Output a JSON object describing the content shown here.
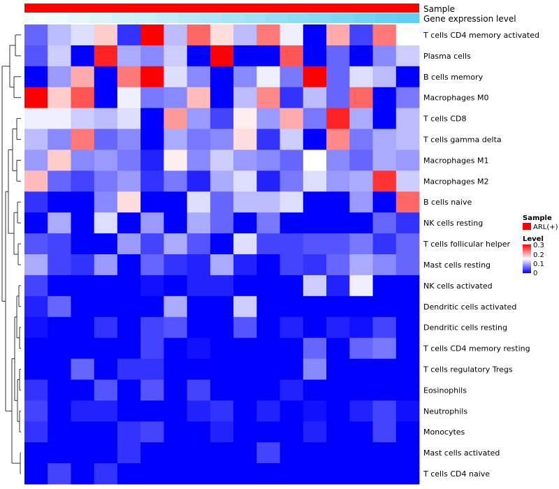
{
  "chart_data": {
    "type": "heatmap",
    "title": "",
    "annotations": {
      "sample_label": "Sample",
      "expression_label": "Gene expression level"
    },
    "legend": {
      "sample_title": "Sample",
      "sample_group": "ARL(+)",
      "sample_color": "#ff0000",
      "level_title": "Level",
      "level_ticks": [
        "0.3",
        "0.2",
        "0.1",
        "0"
      ],
      "range": [
        0,
        0.3
      ]
    },
    "colors": {
      "low": "#0000ff",
      "mid": "#ffffff",
      "high": "#ff0000"
    },
    "gene_expression_bar": [
      0.05,
      0.1,
      0.15,
      0.2,
      0.25,
      0.3,
      0.35,
      0.4,
      0.45,
      0.5,
      0.55,
      0.6,
      0.65,
      0.7,
      0.75,
      0.8,
      0.85,
      0.9
    ],
    "rows": [
      "T cells CD4 memory activated",
      "Plasma cells",
      "B cells memory",
      "Macrophages M0",
      "T cells CD8",
      "T cells gamma delta",
      "Macrophages M1",
      "Macrophages M2",
      "B cells naive",
      "NK cells resting",
      "T cells follicular helper",
      "Mast cells resting",
      "NK cells activated",
      "Dendritic cells activated",
      "Dendritic cells resting",
      "T cells CD4 memory resting",
      "T cells regulatory  Tregs",
      "Eosinophils",
      "Neutrophils",
      "Monocytes",
      "Mast cells activated",
      "T cells CD4 naive"
    ],
    "values": [
      [
        0.06,
        0.11,
        0.13,
        0.18,
        0.03,
        0.3,
        0.11,
        0.24,
        0.17,
        0.11,
        0.23,
        0.14,
        0.0,
        0.2,
        0.04,
        0.23,
        0.15
      ],
      [
        0.05,
        0.12,
        0.0,
        0.28,
        0.1,
        0.08,
        0.12,
        0.0,
        0.3,
        0.0,
        0.0,
        0.25,
        0.0,
        0.06,
        0.0,
        0.08,
        0.12
      ],
      [
        0.0,
        0.09,
        0.2,
        0.0,
        0.23,
        0.3,
        0.13,
        0.08,
        0.0,
        0.08,
        0.14,
        0.07,
        0.3,
        0.06,
        0.13,
        0.11,
        0.0
      ],
      [
        0.3,
        0.18,
        0.25,
        0.0,
        0.14,
        0.07,
        0.08,
        0.19,
        0.0,
        0.11,
        0.22,
        0.03,
        0.11,
        0.06,
        0.24,
        0.0,
        0.07
      ],
      [
        0.14,
        0.14,
        0.12,
        0.11,
        0.13,
        0.0,
        0.21,
        0.09,
        0.04,
        0.16,
        0.09,
        0.2,
        0.07,
        0.28,
        0.1,
        0.0,
        0.11
      ],
      [
        0.11,
        0.08,
        0.23,
        0.06,
        0.08,
        0.0,
        0.1,
        0.07,
        0.08,
        0.17,
        0.03,
        0.12,
        0.0,
        0.22,
        0.07,
        0.1,
        0.11
      ],
      [
        0.09,
        0.18,
        0.08,
        0.09,
        0.07,
        0.02,
        0.16,
        0.08,
        0.12,
        0.09,
        0.08,
        0.06,
        0.15,
        0.08,
        0.06,
        0.1,
        0.09
      ],
      [
        0.19,
        0.06,
        0.04,
        0.07,
        0.09,
        0.03,
        0.07,
        0.02,
        0.1,
        0.13,
        0.02,
        0.07,
        0.13,
        0.09,
        0.1,
        0.27,
        0.12
      ],
      [
        0.03,
        0.0,
        0.0,
        0.08,
        0.17,
        0.0,
        0.0,
        0.13,
        0.06,
        0.11,
        0.11,
        0.13,
        0.0,
        0.0,
        0.09,
        0.0,
        0.24
      ],
      [
        0.0,
        0.1,
        0.0,
        0.13,
        0.0,
        0.09,
        0.0,
        0.1,
        0.06,
        0.0,
        0.07,
        0.0,
        0.0,
        0.0,
        0.0,
        0.06,
        0.03
      ],
      [
        0.05,
        0.04,
        0.0,
        0.0,
        0.09,
        0.04,
        0.1,
        0.05,
        0.0,
        0.13,
        0.04,
        0.04,
        0.05,
        0.05,
        0.07,
        0.03,
        0.06
      ],
      [
        0.1,
        0.04,
        0.03,
        0.09,
        0.0,
        0.06,
        0.03,
        0.02,
        0.1,
        0.02,
        0.0,
        0.04,
        0.03,
        0.06,
        0.1,
        0.08,
        0.06
      ],
      [
        0.04,
        0.0,
        0.0,
        0.0,
        0.0,
        0.01,
        0.0,
        0.02,
        0.02,
        0.0,
        0.0,
        0.0,
        0.12,
        0.02,
        0.14,
        0.0,
        0.0
      ],
      [
        0.02,
        0.06,
        0.0,
        0.0,
        0.0,
        0.0,
        0.1,
        0.0,
        0.0,
        0.12,
        0.0,
        0.0,
        0.0,
        0.0,
        0.0,
        0.0,
        0.0
      ],
      [
        0.01,
        0.0,
        0.0,
        0.03,
        0.0,
        0.04,
        0.05,
        0.0,
        0.0,
        0.05,
        0.0,
        0.02,
        0.0,
        0.02,
        0.01,
        0.04,
        0.0
      ],
      [
        0.0,
        0.0,
        0.0,
        0.0,
        0.0,
        0.04,
        0.0,
        0.01,
        0.0,
        0.0,
        0.0,
        0.0,
        0.06,
        0.0,
        0.06,
        0.07,
        0.0
      ],
      [
        0.0,
        0.0,
        0.06,
        0.0,
        0.03,
        0.03,
        0.0,
        0.0,
        0.0,
        0.0,
        0.0,
        0.0,
        0.08,
        0.0,
        0.0,
        0.0,
        0.0
      ],
      [
        0.03,
        0.0,
        0.0,
        0.05,
        0.0,
        0.05,
        0.0,
        0.04,
        0.0,
        0.0,
        0.0,
        0.02,
        0.0,
        0.0,
        0.0,
        0.0,
        0.0
      ],
      [
        0.04,
        0.0,
        0.02,
        0.02,
        0.0,
        0.0,
        0.0,
        0.02,
        0.03,
        0.0,
        0.02,
        0.0,
        0.01,
        0.0,
        0.02,
        0.04,
        0.01
      ],
      [
        0.03,
        0.0,
        0.0,
        0.0,
        0.03,
        0.04,
        0.0,
        0.0,
        0.02,
        0.0,
        0.0,
        0.0,
        0.02,
        0.0,
        0.0,
        0.04,
        0.0
      ],
      [
        0.0,
        0.0,
        0.0,
        0.0,
        0.03,
        0.0,
        0.0,
        0.0,
        0.0,
        0.0,
        0.04,
        0.0,
        0.0,
        0.0,
        0.0,
        0.0,
        0.0
      ],
      [
        0.0,
        0.04,
        0.0,
        0.03,
        0.0,
        0.0,
        0.0,
        0.0,
        0.0,
        0.0,
        0.0,
        0.0,
        0.0,
        0.0,
        0.0,
        0.0,
        0.0
      ]
    ]
  }
}
